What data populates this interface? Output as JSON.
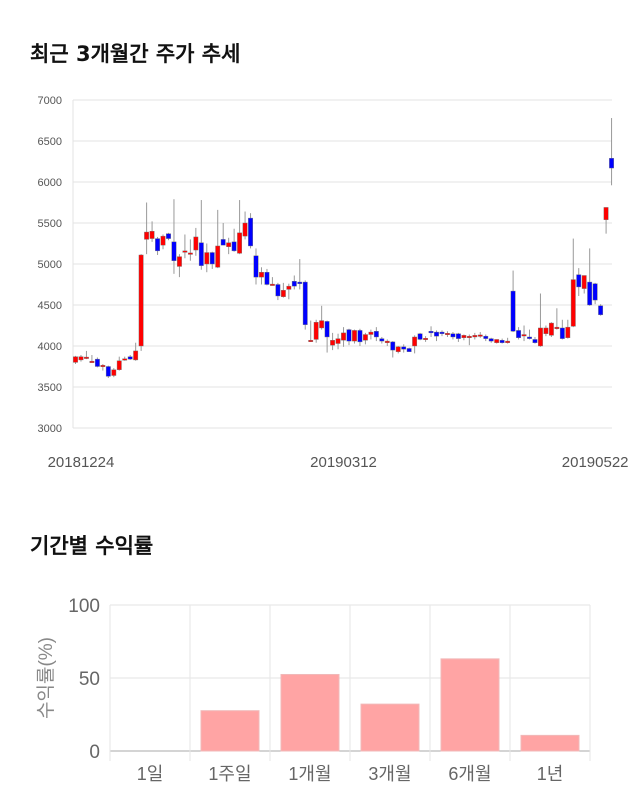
{
  "section1": {
    "title": "최근 3개월간 주가 추세"
  },
  "section2": {
    "title": "기간별 수익률"
  },
  "chart_data": [
    {
      "type": "candlestick",
      "ylim": [
        3000,
        7000
      ],
      "yticks": [
        3000,
        3500,
        4000,
        4500,
        5000,
        5500,
        6000,
        6500,
        7000
      ],
      "xtick_labels": [
        {
          "label": "20181224",
          "index": 1
        },
        {
          "label": "20190312",
          "index": 49
        },
        {
          "label": "20190522",
          "index": 95
        }
      ],
      "grid": true,
      "colors": {
        "up": "#ff0000",
        "down": "#0000ff",
        "wick": "#999999"
      },
      "ohlc": [
        [
          3800,
          3880,
          3780,
          3870
        ],
        [
          3830,
          3890,
          3810,
          3870
        ],
        [
          3860,
          3940,
          3840,
          3865
        ],
        [
          3810,
          3890,
          3800,
          3815
        ],
        [
          3840,
          3860,
          3740,
          3750
        ],
        [
          3760,
          3780,
          3700,
          3765
        ],
        [
          3750,
          3760,
          3610,
          3630
        ],
        [
          3640,
          3730,
          3620,
          3710
        ],
        [
          3710,
          3870,
          3700,
          3820
        ],
        [
          3840,
          3870,
          3820,
          3845
        ],
        [
          3870,
          3890,
          3830,
          3840
        ],
        [
          3830,
          4040,
          3820,
          3940
        ],
        [
          4000,
          5120,
          3940,
          5110
        ],
        [
          5300,
          5750,
          5120,
          5390
        ],
        [
          5310,
          5520,
          5270,
          5400
        ],
        [
          5310,
          5330,
          5110,
          5160
        ],
        [
          5230,
          5360,
          5180,
          5340
        ],
        [
          5370,
          5380,
          5290,
          5310
        ],
        [
          5270,
          5790,
          4880,
          5040
        ],
        [
          4970,
          5120,
          4840,
          5090
        ],
        [
          5150,
          5360,
          5070,
          5160
        ],
        [
          5130,
          5300,
          5040,
          5135
        ],
        [
          5170,
          5440,
          5100,
          5330
        ],
        [
          5260,
          5780,
          4930,
          4980
        ],
        [
          5000,
          5250,
          4900,
          5140
        ],
        [
          5140,
          5150,
          4940,
          5000
        ],
        [
          4960,
          5660,
          4950,
          5220
        ],
        [
          5300,
          5500,
          5240,
          5230
        ],
        [
          5210,
          5320,
          5120,
          5260
        ],
        [
          5270,
          5430,
          5150,
          5160
        ],
        [
          5130,
          5780,
          5120,
          5380
        ],
        [
          5340,
          5640,
          5300,
          5500
        ],
        [
          5560,
          5620,
          5190,
          5220
        ],
        [
          5100,
          5190,
          4750,
          4840
        ],
        [
          4840,
          4960,
          4750,
          4900
        ],
        [
          4900,
          4940,
          4740,
          4750
        ],
        [
          4750,
          4840,
          4740,
          4755
        ],
        [
          4750,
          4770,
          4560,
          4610
        ],
        [
          4600,
          4770,
          4590,
          4680
        ],
        [
          4690,
          4760,
          4570,
          4730
        ],
        [
          4790,
          4860,
          4690,
          4730
        ],
        [
          4780,
          5060,
          4690,
          4760
        ],
        [
          4780,
          4800,
          4200,
          4260
        ],
        [
          4060,
          4310,
          4050,
          4070
        ],
        [
          4080,
          4320,
          4040,
          4290
        ],
        [
          4220,
          4490,
          4200,
          4310
        ],
        [
          4300,
          4310,
          3920,
          4110
        ],
        [
          4010,
          4160,
          3950,
          4070
        ],
        [
          4030,
          4150,
          3960,
          4090
        ],
        [
          4070,
          4230,
          3990,
          4160
        ],
        [
          4200,
          4210,
          4010,
          4060
        ],
        [
          4060,
          4200,
          4030,
          4190
        ],
        [
          4190,
          4210,
          4000,
          4050
        ],
        [
          4070,
          4160,
          4020,
          4140
        ],
        [
          4140,
          4200,
          4080,
          4170
        ],
        [
          4180,
          4230,
          4060,
          4110
        ],
        [
          4090,
          4110,
          4030,
          4060
        ],
        [
          4040,
          4080,
          4000,
          4060
        ],
        [
          4050,
          4060,
          3860,
          3950
        ],
        [
          3930,
          4000,
          3910,
          3990
        ],
        [
          3990,
          4020,
          3920,
          3960
        ],
        [
          3970,
          3980,
          3930,
          3930
        ],
        [
          4000,
          4130,
          3910,
          4110
        ],
        [
          4150,
          4160,
          4070,
          4080
        ],
        [
          4090,
          4120,
          4050,
          4095
        ],
        [
          4180,
          4240,
          4110,
          4160
        ],
        [
          4170,
          4190,
          4060,
          4120
        ],
        [
          4170,
          4190,
          4120,
          4150
        ],
        [
          4150,
          4180,
          4110,
          4155
        ],
        [
          4150,
          4170,
          4080,
          4110
        ],
        [
          4150,
          4160,
          4050,
          4090
        ],
        [
          4100,
          4140,
          4070,
          4130
        ],
        [
          4100,
          4140,
          4010,
          4120
        ],
        [
          4110,
          4160,
          4080,
          4130
        ],
        [
          4130,
          4170,
          4100,
          4135
        ],
        [
          4120,
          4140,
          4060,
          4090
        ],
        [
          4090,
          4100,
          4040,
          4060
        ],
        [
          4040,
          4080,
          4030,
          4080
        ],
        [
          4070,
          4090,
          4030,
          4040
        ],
        [
          4040,
          4100,
          4030,
          4060
        ],
        [
          4670,
          4920,
          4170,
          4180
        ],
        [
          4190,
          4230,
          4080,
          4100
        ],
        [
          4130,
          4250,
          4060,
          4140
        ],
        [
          4110,
          4200,
          4080,
          4090
        ],
        [
          4080,
          4110,
          4030,
          4040
        ],
        [
          4000,
          4640,
          3990,
          4220
        ],
        [
          4150,
          4250,
          4120,
          4220
        ],
        [
          4130,
          4290,
          4110,
          4280
        ],
        [
          4210,
          4460,
          4200,
          4230
        ],
        [
          4220,
          4320,
          4080,
          4090
        ],
        [
          4100,
          4320,
          4090,
          4230
        ],
        [
          4240,
          5310,
          4230,
          4810
        ],
        [
          4870,
          4950,
          4610,
          4720
        ],
        [
          4700,
          4860,
          4640,
          4860
        ],
        [
          4780,
          5190,
          4490,
          4500
        ],
        [
          4760,
          4770,
          4510,
          4560
        ],
        [
          4490,
          4510,
          4370,
          4380
        ],
        [
          5540,
          5690,
          5370,
          5690
        ],
        [
          6290,
          6780,
          5960,
          6170
        ]
      ]
    },
    {
      "type": "bar",
      "categories": [
        "1일",
        "1주일",
        "1개월",
        "3개월",
        "6개월",
        "1년"
      ],
      "values": [
        0,
        27.6,
        52.4,
        32.1,
        63.1,
        10.7
      ],
      "ylabel": "수익률(%)",
      "ylim": [
        0,
        100
      ],
      "yticks": [
        0,
        50,
        100
      ],
      "grid": true,
      "bar_color": "#ffa4a4"
    }
  ]
}
